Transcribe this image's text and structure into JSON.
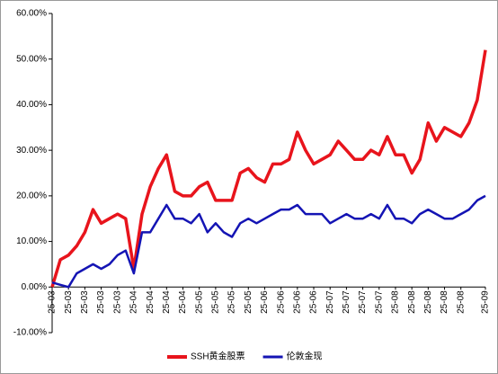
{
  "chart_data": {
    "type": "line",
    "categories": [
      "25-03",
      null,
      "25-03",
      null,
      "25-03",
      null,
      "25-03",
      null,
      "25-03",
      null,
      "25-04",
      null,
      "25-04",
      null,
      "25-04",
      null,
      "25-04",
      null,
      "25-05",
      null,
      "25-05",
      null,
      "25-05",
      null,
      "25-05",
      null,
      "25-06",
      null,
      "25-06",
      null,
      "25-06",
      null,
      "25-06",
      null,
      "25-07",
      null,
      "25-07",
      null,
      "25-07",
      null,
      "25-07",
      null,
      "25-08",
      null,
      "25-08",
      null,
      "25-08",
      null,
      "25-08",
      null,
      "25-08",
      null,
      null,
      "25-09"
    ],
    "series": [
      {
        "name": "SSH黄金股票",
        "color": "#e8141c",
        "values": [
          0,
          6,
          7,
          9,
          12,
          17,
          14,
          15,
          16,
          15,
          4,
          16,
          22,
          26,
          29,
          21,
          20,
          20,
          22,
          23,
          19,
          19,
          19,
          25,
          26,
          24,
          23,
          27,
          27,
          28,
          34,
          30,
          27,
          28,
          29,
          32,
          30,
          28,
          28,
          30,
          29,
          33,
          29,
          29,
          25,
          28,
          36,
          32,
          35,
          34,
          33,
          36,
          41,
          52
        ]
      },
      {
        "name": "伦敦金现",
        "color": "#1414b4",
        "values": [
          1,
          0.5,
          0,
          3,
          4,
          5,
          4,
          5,
          7,
          8,
          3,
          12,
          12,
          15,
          18,
          15,
          15,
          14,
          16,
          12,
          14,
          12,
          11,
          14,
          15,
          14,
          15,
          16,
          17,
          17,
          18,
          16,
          16,
          16,
          14,
          15,
          16,
          15,
          15,
          16,
          15,
          18,
          15,
          15,
          14,
          16,
          17,
          16,
          15,
          15,
          16,
          17,
          19,
          20
        ]
      }
    ],
    "ylim": [
      -10,
      60
    ],
    "yticks": [
      {
        "value": -10,
        "label": "-10.00%"
      },
      {
        "value": 0,
        "label": "0.00%"
      },
      {
        "value": 10,
        "label": "10.00%"
      },
      {
        "value": 20,
        "label": "20.00%"
      },
      {
        "value": 30,
        "label": "30.00%"
      },
      {
        "value": 40,
        "label": "40.00%"
      },
      {
        "value": 50,
        "label": "50.00%"
      },
      {
        "value": 60,
        "label": "60.00%"
      }
    ],
    "legend": "bottom"
  }
}
